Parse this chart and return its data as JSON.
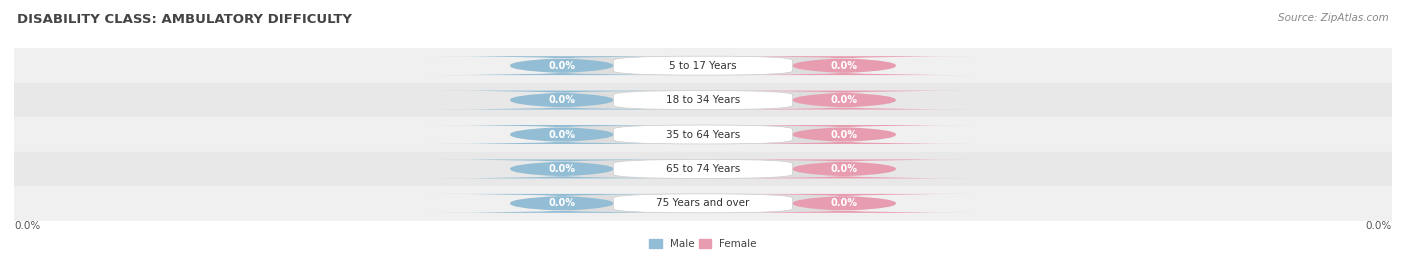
{
  "title": "DISABILITY CLASS: AMBULATORY DIFFICULTY",
  "source_text": "Source: ZipAtlas.com",
  "categories": [
    "5 to 17 Years",
    "18 to 34 Years",
    "35 to 64 Years",
    "65 to 74 Years",
    "75 Years and over"
  ],
  "male_values": [
    0.0,
    0.0,
    0.0,
    0.0,
    0.0
  ],
  "female_values": [
    0.0,
    0.0,
    0.0,
    0.0,
    0.0
  ],
  "male_color": "#93bdd4",
  "female_color": "#e89cb0",
  "row_bg_colors": [
    "#f0f0f0",
    "#e8e8e8"
  ],
  "pill_bg_color": "#dedede",
  "center_box_color": "#ffffff",
  "center_box_edge": "#cccccc",
  "x_left_label": "0.0%",
  "x_right_label": "0.0%",
  "title_fontsize": 9.5,
  "source_fontsize": 7.5,
  "label_fontsize": 7.5,
  "badge_fontsize": 7,
  "xlim_left": -1.0,
  "xlim_right": 1.0,
  "background_color": "#ffffff",
  "title_color": "#444444",
  "source_color": "#888888",
  "axis_label_color": "#555555",
  "legend_label_color": "#444444"
}
